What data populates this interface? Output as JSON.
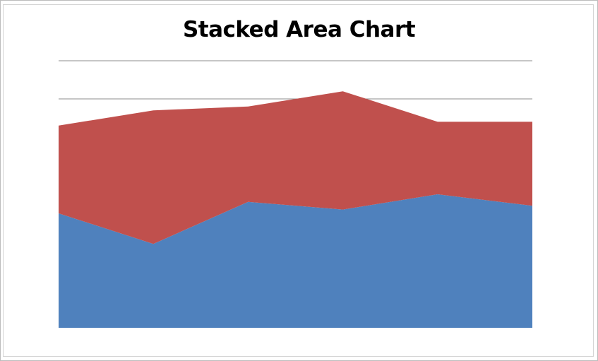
{
  "chart_data": {
    "type": "area",
    "stacked": true,
    "title": "Stacked Area Chart",
    "xlabel": "",
    "ylabel": "",
    "categories": [
      "",
      "",
      "",
      "",
      "",
      ""
    ],
    "ylim": [
      0,
      7
    ],
    "gridlines": [
      6,
      7
    ],
    "grid": true,
    "legend": "none",
    "series": [
      {
        "values": [
          3.0,
          2.2,
          3.3,
          3.1,
          3.5,
          3.2
        ],
        "color": "#4f81bd"
      },
      {
        "values": [
          2.3,
          3.5,
          2.5,
          3.1,
          1.9,
          2.2
        ],
        "color": "#c0504d"
      }
    ]
  }
}
